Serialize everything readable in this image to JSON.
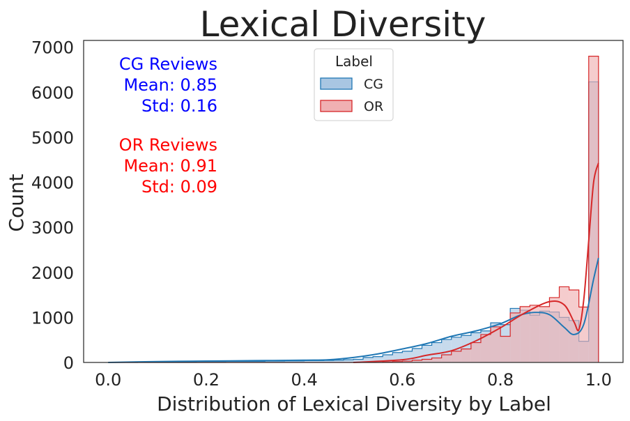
{
  "chart_data": {
    "type": "histogram",
    "title": "Lexical Diversity",
    "xlabel": "Distribution of Lexical Diversity by Label",
    "ylabel": "Count",
    "xlim": [
      -0.05,
      1.05
    ],
    "ylim": [
      0,
      7150
    ],
    "xticks": [
      "0.0",
      "0.2",
      "0.4",
      "0.6",
      "0.8",
      "1.0"
    ],
    "xtick_values": [
      0,
      0.2,
      0.4,
      0.6,
      0.8,
      1.0
    ],
    "yticks": [
      "0",
      "1000",
      "2000",
      "3000",
      "4000",
      "5000",
      "6000",
      "7000"
    ],
    "ytick_values": [
      0,
      1000,
      2000,
      3000,
      4000,
      5000,
      6000,
      7000
    ],
    "grid": false,
    "legend": {
      "title": "Label",
      "placement": "top-center",
      "entries": [
        "CG",
        "OR"
      ]
    },
    "bins": {
      "start": 0.0,
      "width": 0.02,
      "count": 50
    },
    "series": [
      {
        "name": "CG",
        "color": "#1f77b4",
        "fill": "#a9c6e2",
        "values": [
          0,
          0,
          0,
          10,
          10,
          15,
          15,
          15,
          15,
          20,
          20,
          20,
          25,
          25,
          25,
          25,
          30,
          30,
          35,
          35,
          40,
          40,
          45,
          50,
          60,
          70,
          110,
          130,
          170,
          220,
          250,
          310,
          380,
          440,
          510,
          560,
          600,
          660,
          700,
          880,
          840,
          1200,
          1160,
          1050,
          1140,
          1120,
          1000,
          930,
          470,
          6230
        ],
        "kde_x": [
          0,
          0.1,
          0.2,
          0.3,
          0.4,
          0.45,
          0.5,
          0.55,
          0.6,
          0.65,
          0.7,
          0.75,
          0.8,
          0.84,
          0.87,
          0.9,
          0.93,
          0.95,
          0.97,
          0.99,
          1.0
        ],
        "kde_y": [
          0,
          20,
          30,
          40,
          50,
          60,
          110,
          190,
          300,
          420,
          580,
          700,
          860,
          1050,
          1110,
          1060,
          780,
          620,
          850,
          1850,
          2320
        ]
      },
      {
        "name": "OR",
        "color": "#d62728",
        "fill": "#f0b0b2",
        "values": [
          0,
          0,
          0,
          0,
          0,
          0,
          0,
          0,
          0,
          0,
          0,
          0,
          0,
          0,
          0,
          0,
          0,
          0,
          0,
          0,
          0,
          0,
          0,
          0,
          0,
          0,
          0,
          0,
          10,
          20,
          30,
          50,
          70,
          100,
          170,
          250,
          300,
          440,
          620,
          790,
          580,
          1100,
          1240,
          1270,
          1240,
          1440,
          1680,
          1610,
          1230,
          6800
        ],
        "kde_x": [
          0.5,
          0.6,
          0.65,
          0.7,
          0.75,
          0.8,
          0.85,
          0.9,
          0.93,
          0.95,
          0.96,
          0.97,
          0.98,
          0.99,
          1.0
        ],
        "kde_y": [
          0,
          60,
          160,
          260,
          480,
          770,
          1100,
          1350,
          1280,
          900,
          730,
          1400,
          2700,
          4000,
          4430
        ]
      }
    ],
    "annotations": [
      {
        "lines": [
          "CG Reviews",
          "Mean: 0.85",
          "Std: 0.16"
        ],
        "color": "#0000ff"
      },
      {
        "lines": [
          "OR Reviews",
          "Mean: 0.91",
          "Std: 0.09"
        ],
        "color": "#ff0000"
      }
    ]
  }
}
